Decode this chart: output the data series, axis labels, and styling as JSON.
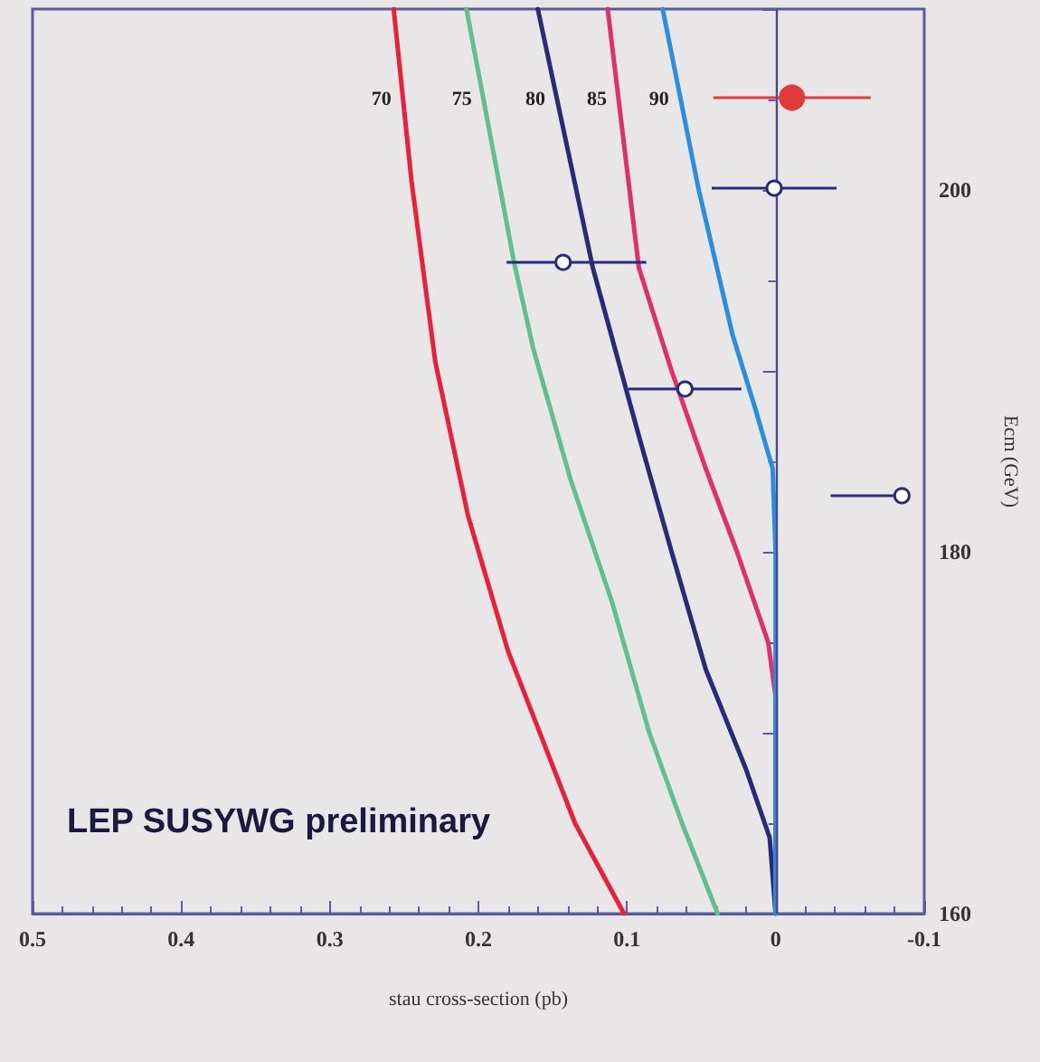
{
  "chart_data": {
    "type": "line",
    "title": "LEP SUSYWG preliminary",
    "xlabel": "stau cross-section (pb)",
    "ylabel": "Ecm (GeV)",
    "xlim": [
      0.5,
      -0.1
    ],
    "xticks": [
      0.5,
      0.4,
      0.3,
      0.2,
      0.1,
      0,
      -0.1
    ],
    "ylim": [
      160,
      210
    ],
    "yticks": [
      160,
      {
        "value": 170,
        "label": null
      },
      180,
      {
        "value": 190,
        "label": null
      },
      200,
      {
        "value": 210,
        "label": null
      }
    ],
    "grid": false,
    "line_style": "solid",
    "ref_lines": [
      {
        "axis": "x",
        "value": 0,
        "label": null,
        "color": "#4a4a90"
      }
    ],
    "series": [
      {
        "name": "70",
        "color": "#e8203a",
        "x": [
          0.102,
          0.135,
          0.18,
          0.207,
          0.229,
          0.245,
          0.257
        ],
        "values": [
          160,
          165,
          174.5,
          182,
          190.5,
          200.5,
          210
        ]
      },
      {
        "name": "75",
        "color": "#5fbf8f",
        "x": [
          0.039,
          0.063,
          0.085,
          0.11,
          0.138,
          0.163,
          0.176,
          0.208
        ],
        "values": [
          160,
          165,
          170,
          177.2,
          184,
          191.2,
          196,
          210
        ]
      },
      {
        "name": "80",
        "color": "#2a2a7a",
        "x": [
          0,
          0.004,
          0.02,
          0.047,
          0.07,
          0.092,
          0.123,
          0.16
        ],
        "values": [
          160,
          164.2,
          168,
          173.5,
          180,
          186.4,
          195.7,
          210
        ]
      },
      {
        "name": "85",
        "color": "#e0306a",
        "x": [
          0,
          0,
          0.005,
          0.026,
          0.047,
          0.07,
          0.092,
          0.113
        ],
        "values": [
          160,
          172,
          175,
          180,
          184.6,
          190,
          195.7,
          210
        ]
      },
      {
        "name": "90",
        "color": "#2a8ee0",
        "x": [
          0,
          0,
          0.002,
          0.014,
          0.029,
          0.052,
          0.076
        ],
        "values": [
          160,
          180,
          184.6,
          188,
          192,
          200.1,
          210
        ]
      },
      {
        "type": "scatter",
        "marker": "circle",
        "color": "#2a2a7a",
        "x": [
          -0.085,
          0.061,
          0.143,
          0.001
        ],
        "values": [
          183.1,
          189,
          196,
          200.1
        ],
        "xerrors": [
          [
            -0.085,
            -0.037
          ],
          0.038,
          [
            0.087,
            0.181
          ],
          0.042
        ]
      },
      {
        "type": "scatter",
        "marker": "circle",
        "color": "#e03a3a",
        "x": [
          -0.011
        ],
        "values": [
          205.1
        ],
        "xerrors": [
          0.053
        ]
      }
    ]
  }
}
